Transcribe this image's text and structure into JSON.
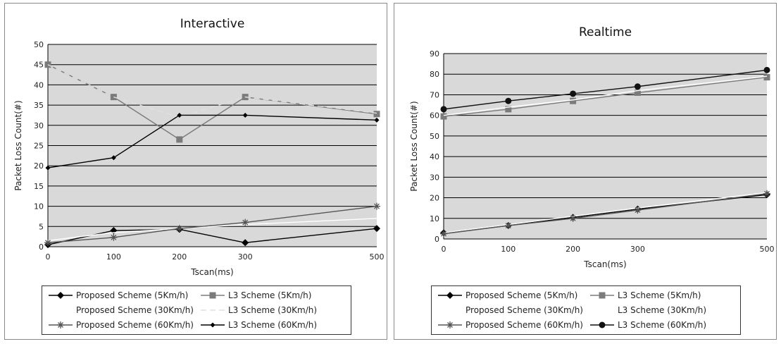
{
  "chart_data": [
    {
      "type": "line",
      "title": "Interactive",
      "xlabel": "Tscan(ms)",
      "ylabel": "Packet Loss Count(#)",
      "categories": [
        "0",
        "100",
        "200",
        "300",
        "500"
      ],
      "ylim": [
        0,
        50
      ],
      "yticks": [
        "0",
        "5",
        "10",
        "15",
        "20",
        "25",
        "30",
        "35",
        "40",
        "45",
        "50"
      ],
      "grid": true,
      "legend_position": "bottom",
      "series": [
        {
          "name": "Proposed Scheme (5Km/h)",
          "values": [
            0.5,
            4,
            4.3,
            1,
            4.5
          ],
          "color": "#000000",
          "marker": "diamond",
          "dash": "none"
        },
        {
          "name": "L3 Scheme (5Km/h)",
          "values": [
            45,
            37,
            26.5,
            37,
            32.8
          ],
          "color": "#7b7b7b",
          "marker": "square",
          "dash": "none"
        },
        {
          "name": "Proposed Scheme (30Km/h)",
          "values": [
            1.5,
            3.5,
            4.5,
            5.5,
            7
          ],
          "color": "#ffffff",
          "marker": "none",
          "dash": "none"
        },
        {
          "name": "L3 Scheme (30Km/h)",
          "values": [
            45,
            37,
            32,
            37,
            33
          ],
          "color": "#e0e0e0",
          "marker": "none",
          "dash": "8,5"
        },
        {
          "name": "Proposed Scheme (60Km/h)",
          "values": [
            1,
            2.3,
            4.5,
            6,
            10
          ],
          "color": "#555555",
          "marker": "star",
          "dash": "none"
        },
        {
          "name": "L3 Scheme (60Km/h)",
          "values": [
            19.5,
            22,
            32.5,
            32.5,
            31.3
          ],
          "color": "#000000",
          "marker": "smalldiamond",
          "dash": "none"
        }
      ]
    },
    {
      "type": "line",
      "title": "Realtime",
      "xlabel": "Tscan(ms)",
      "ylabel": "Packet Loss Count(#)",
      "categories": [
        "0",
        "100",
        "200",
        "300",
        "500"
      ],
      "ylim": [
        0,
        90
      ],
      "yticks": [
        "0",
        "10",
        "20",
        "30",
        "40",
        "50",
        "60",
        "70",
        "80",
        "90"
      ],
      "grid": true,
      "legend_position": "bottom",
      "series": [
        {
          "name": "Proposed Scheme (5Km/h)",
          "values": [
            3,
            6.5,
            10.5,
            14.5,
            21.5
          ],
          "color": "#000000",
          "marker": "diamond",
          "dash": "none"
        },
        {
          "name": "L3 Scheme (5Km/h)",
          "values": [
            59.5,
            63,
            67,
            71,
            78.5
          ],
          "color": "#7b7b7b",
          "marker": "square",
          "dash": "none"
        },
        {
          "name": "Proposed Scheme (30Km/h)",
          "values": [
            3,
            7,
            11,
            15,
            22.5
          ],
          "color": "#ffffff",
          "marker": "none",
          "dash": "none"
        },
        {
          "name": "L3 Scheme (30Km/h)",
          "values": [
            60,
            64,
            67.5,
            72,
            79
          ],
          "color": "#ffffff",
          "marker": "none",
          "dash": "none"
        },
        {
          "name": "Proposed Scheme (60Km/h)",
          "values": [
            2.5,
            6.5,
            10,
            14,
            22
          ],
          "color": "#555555",
          "marker": "star",
          "dash": "none"
        },
        {
          "name": "L3 Scheme (60Km/h)",
          "values": [
            63,
            67,
            70.5,
            74,
            82
          ],
          "color": "#111111",
          "marker": "circle",
          "dash": "none"
        }
      ]
    }
  ]
}
